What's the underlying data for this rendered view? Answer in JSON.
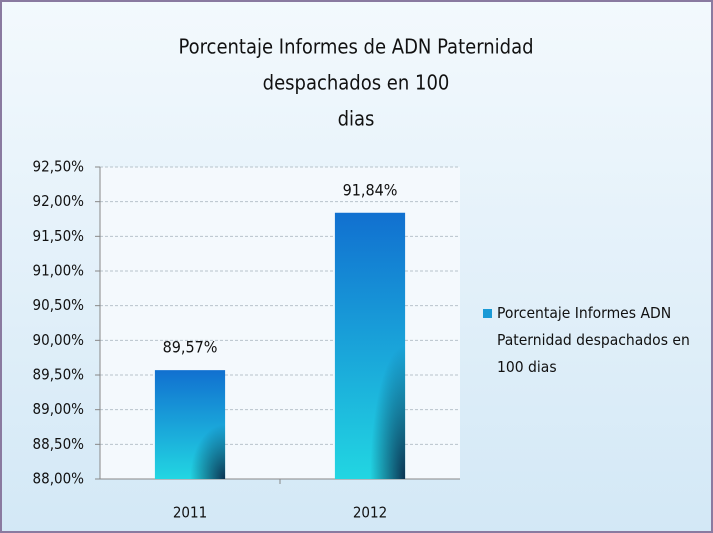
{
  "chart_data": {
    "type": "bar",
    "title": [
      "Porcentaje Informes de ADN Paternidad",
      "despachados en 100",
      "dias"
    ],
    "categories": [
      "2011",
      "2012"
    ],
    "series": [
      {
        "name": "Porcentaje Informes ADN Paternidad despachados en 100 dias",
        "color": "#1a9ad6",
        "values": [
          89.57,
          91.84
        ],
        "value_labels": [
          "89,57%",
          "91,84%"
        ]
      }
    ],
    "ylim": [
      88,
      92.5
    ],
    "yticks": [
      {
        "value": 88,
        "label": "88,00%"
      },
      {
        "value": 88.5,
        "label": "88,50%"
      },
      {
        "value": 89,
        "label": "89,00%"
      },
      {
        "value": 89.5,
        "label": "89,50%"
      },
      {
        "value": 90,
        "label": "90,00%"
      },
      {
        "value": 90.5,
        "label": "90,50%"
      },
      {
        "value": 91,
        "label": "91,00%"
      },
      {
        "value": 91.5,
        "label": "91,50%"
      },
      {
        "value": 92,
        "label": "92,00%"
      },
      {
        "value": 92.5,
        "label": "92,50%"
      }
    ],
    "grid": true,
    "legend": "right"
  }
}
